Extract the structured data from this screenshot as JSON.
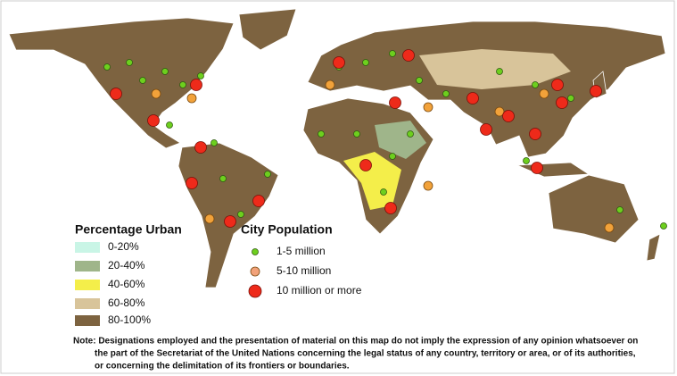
{
  "legend_urban": {
    "title": "Percentage Urban",
    "items": [
      {
        "label": "0-20%",
        "color": "#c9f5e6"
      },
      {
        "label": "20-40%",
        "color": "#9fb58a"
      },
      {
        "label": "40-60%",
        "color": "#f4ee4a"
      },
      {
        "label": "60-80%",
        "color": "#d8c49a"
      },
      {
        "label": "80-100%",
        "color": "#7d6340"
      }
    ]
  },
  "legend_city": {
    "title": "City Population",
    "items": [
      {
        "label": "1-5 million",
        "color": "#6dcf1e"
      },
      {
        "label": "5-10 million",
        "color": "#f2a27a"
      },
      {
        "label": "10 million or more",
        "color": "#ee2a1a"
      }
    ]
  },
  "note": {
    "lines": [
      "Note: Designations employed and the presentation of material on this map do not imply the expression of any opinion whatsoever on",
      "the part of the Secretariat of the United Nations concerning the legal status of any country, territory or area, or of its authorities,",
      "or concerning the delimitation of its frontiers or boundaries."
    ]
  }
}
